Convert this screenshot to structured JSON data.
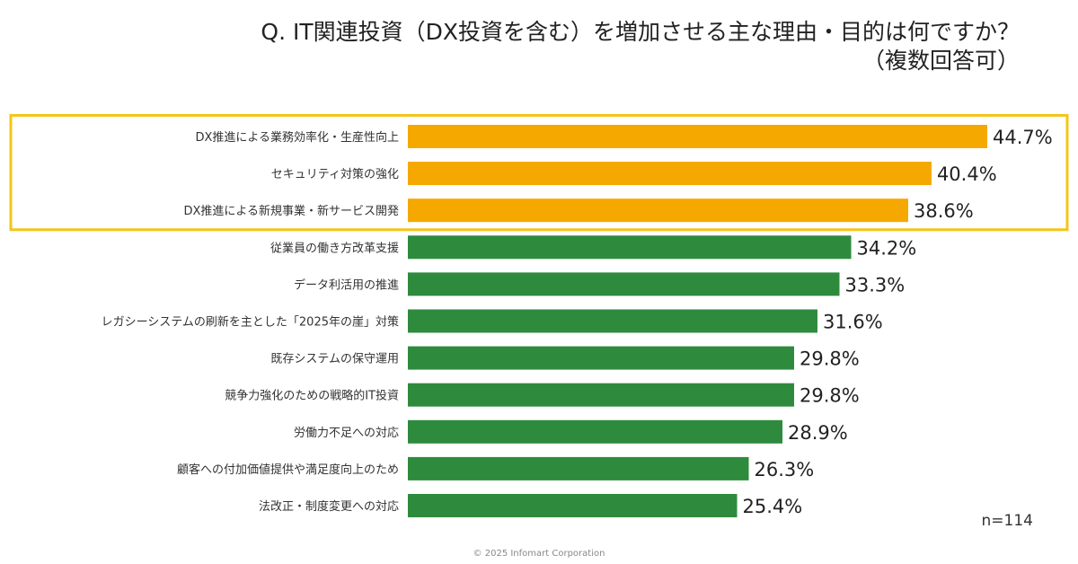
{
  "chart_data": {
    "type": "bar",
    "orientation": "horizontal",
    "title": "Q. IT関連投資（DX投資を含む）を増加させる主な理由・目的は何ですか？",
    "subtitle": "（複数回答可）",
    "categories": [
      "DX推進による業務効率化・生産性向上",
      "セキュリティ対策の強化",
      "DX推進による新規事業・新サービス開発",
      "従業員の働き方改革支援",
      "データ利活用の推進",
      "レガシーシステムの刷新を主とした「2025年の崖」対策",
      "既存システムの保守運用",
      "競争力強化のための戦略的IT投資",
      "労働力不足への対応",
      "顧客への付加価値提供や満足度向上のため",
      "法改正・制度変更への対応"
    ],
    "values": [
      44.7,
      40.4,
      38.6,
      34.2,
      33.3,
      31.6,
      29.8,
      29.8,
      28.9,
      26.3,
      25.4
    ],
    "value_labels": [
      "44.7%",
      "40.4%",
      "38.6%",
      "34.2%",
      "33.3%",
      "31.6%",
      "29.8%",
      "29.8%",
      "28.9%",
      "26.3%",
      "25.4%"
    ],
    "unit": "%",
    "highlighted_top": 3,
    "colors": {
      "highlight": "#F5A800",
      "default": "#2E8B3E",
      "highlight_box": "#F5C518"
    },
    "sample_size": "n=114",
    "grid": false,
    "legend": "none"
  },
  "footer": {
    "copyright": "© 2025 Infomart Corporation"
  }
}
